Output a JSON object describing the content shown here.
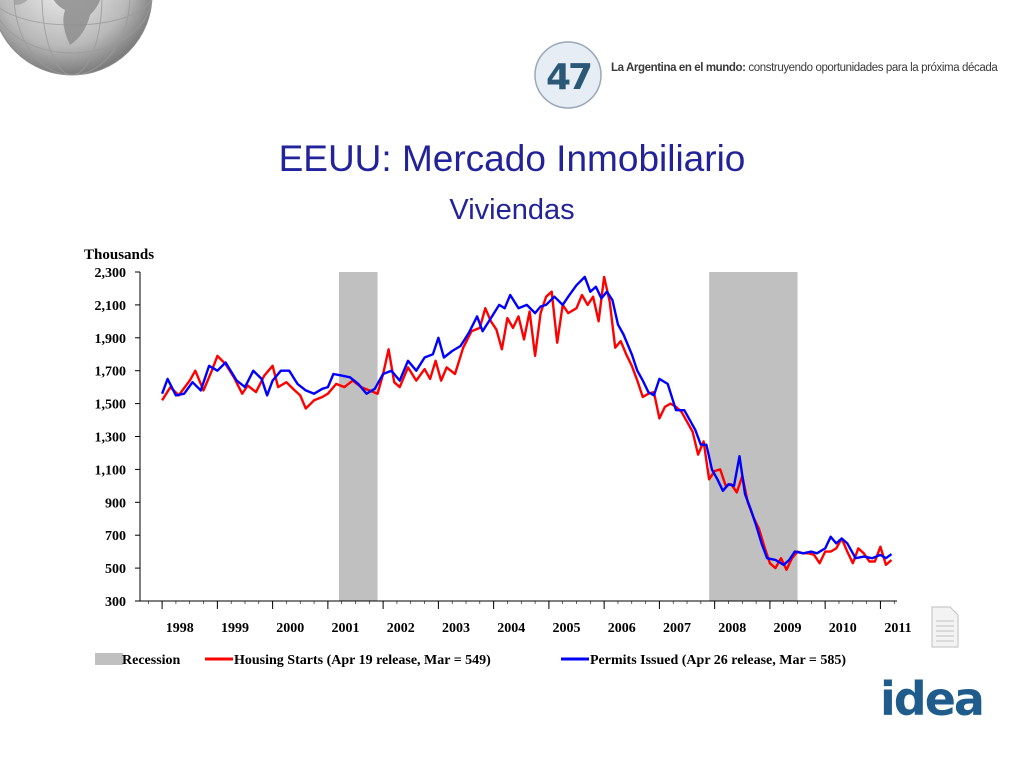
{
  "header": {
    "logo_number": "47",
    "tagline_bold": "La Argentina en el mundo:",
    "tagline_rest": " construyendo oportunidades para la próxima década"
  },
  "slide": {
    "title": "EEUU: Mercado Inmobiliario",
    "subtitle": "Viviendas"
  },
  "brand": {
    "name": "idea",
    "color": "#1f5c8c"
  },
  "chart_data": {
    "type": "line",
    "yunit_label": "Thousands",
    "ylim": [
      300,
      2300
    ],
    "yticks": [
      "2,300",
      "2,100",
      "1,900",
      "1,700",
      "1,500",
      "1,300",
      "1,100",
      "900",
      "700",
      "500",
      "300"
    ],
    "xlim": [
      1997.6,
      2011.3
    ],
    "xtick_labels": [
      "1998",
      "1999",
      "2000",
      "2001",
      "2002",
      "2003",
      "2004",
      "2005",
      "2006",
      "2007",
      "2008",
      "2009",
      "2010",
      "2011"
    ],
    "recessions": [
      [
        2001.2,
        2001.9
      ],
      [
        2007.9,
        2009.5
      ]
    ],
    "recession_color": "#c0c0c0",
    "legend": {
      "recession": "Recession",
      "starts": "Housing Starts (Apr 19 release, Mar = 549)",
      "permits": "Permits Issued (Apr 26 release, Mar = 585)"
    },
    "series": [
      {
        "name": "Housing Starts (Apr 19 release, Mar = 549)",
        "color": "#ff0000",
        "points": [
          [
            1998.0,
            1520
          ],
          [
            1998.15,
            1600
          ],
          [
            1998.3,
            1550
          ],
          [
            1998.5,
            1640
          ],
          [
            1998.6,
            1700
          ],
          [
            1998.75,
            1580
          ],
          [
            1998.9,
            1700
          ],
          [
            1999.0,
            1790
          ],
          [
            1999.15,
            1740
          ],
          [
            1999.3,
            1660
          ],
          [
            1999.45,
            1560
          ],
          [
            1999.55,
            1610
          ],
          [
            1999.7,
            1570
          ],
          [
            1999.85,
            1670
          ],
          [
            2000.0,
            1730
          ],
          [
            2000.1,
            1600
          ],
          [
            2000.25,
            1630
          ],
          [
            2000.4,
            1580
          ],
          [
            2000.5,
            1550
          ],
          [
            2000.6,
            1470
          ],
          [
            2000.75,
            1520
          ],
          [
            2000.9,
            1540
          ],
          [
            2001.0,
            1560
          ],
          [
            2001.15,
            1620
          ],
          [
            2001.3,
            1600
          ],
          [
            2001.45,
            1640
          ],
          [
            2001.6,
            1600
          ],
          [
            2001.75,
            1580
          ],
          [
            2001.9,
            1560
          ],
          [
            2002.0,
            1680
          ],
          [
            2002.1,
            1830
          ],
          [
            2002.2,
            1630
          ],
          [
            2002.3,
            1600
          ],
          [
            2002.45,
            1720
          ],
          [
            2002.6,
            1640
          ],
          [
            2002.75,
            1710
          ],
          [
            2002.85,
            1650
          ],
          [
            2002.95,
            1760
          ],
          [
            2003.05,
            1640
          ],
          [
            2003.15,
            1720
          ],
          [
            2003.3,
            1680
          ],
          [
            2003.45,
            1840
          ],
          [
            2003.6,
            1940
          ],
          [
            2003.75,
            1960
          ],
          [
            2003.85,
            2080
          ],
          [
            2003.95,
            2000
          ],
          [
            2004.05,
            1950
          ],
          [
            2004.15,
            1830
          ],
          [
            2004.25,
            2020
          ],
          [
            2004.35,
            1960
          ],
          [
            2004.45,
            2030
          ],
          [
            2004.55,
            1890
          ],
          [
            2004.65,
            2060
          ],
          [
            2004.75,
            1790
          ],
          [
            2004.85,
            2050
          ],
          [
            2004.95,
            2150
          ],
          [
            2005.05,
            2180
          ],
          [
            2005.15,
            1870
          ],
          [
            2005.25,
            2100
          ],
          [
            2005.35,
            2050
          ],
          [
            2005.5,
            2080
          ],
          [
            2005.6,
            2160
          ],
          [
            2005.7,
            2100
          ],
          [
            2005.8,
            2150
          ],
          [
            2005.9,
            2000
          ],
          [
            2006.0,
            2270
          ],
          [
            2006.1,
            2120
          ],
          [
            2006.2,
            1840
          ],
          [
            2006.3,
            1880
          ],
          [
            2006.4,
            1800
          ],
          [
            2006.5,
            1730
          ],
          [
            2006.6,
            1640
          ],
          [
            2006.7,
            1540
          ],
          [
            2006.8,
            1560
          ],
          [
            2006.9,
            1570
          ],
          [
            2007.0,
            1410
          ],
          [
            2007.1,
            1480
          ],
          [
            2007.2,
            1500
          ],
          [
            2007.3,
            1480
          ],
          [
            2007.4,
            1450
          ],
          [
            2007.5,
            1390
          ],
          [
            2007.6,
            1330
          ],
          [
            2007.7,
            1190
          ],
          [
            2007.8,
            1270
          ],
          [
            2007.9,
            1040
          ],
          [
            2008.0,
            1090
          ],
          [
            2008.1,
            1100
          ],
          [
            2008.2,
            1000
          ],
          [
            2008.3,
            1010
          ],
          [
            2008.4,
            960
          ],
          [
            2008.5,
            1060
          ],
          [
            2008.6,
            900
          ],
          [
            2008.7,
            810
          ],
          [
            2008.8,
            740
          ],
          [
            2008.9,
            630
          ],
          [
            2009.0,
            530
          ],
          [
            2009.1,
            500
          ],
          [
            2009.2,
            560
          ],
          [
            2009.3,
            490
          ],
          [
            2009.4,
            560
          ],
          [
            2009.5,
            600
          ],
          [
            2009.6,
            590
          ],
          [
            2009.7,
            590
          ],
          [
            2009.8,
            580
          ],
          [
            2009.9,
            530
          ],
          [
            2010.0,
            600
          ],
          [
            2010.1,
            600
          ],
          [
            2010.2,
            620
          ],
          [
            2010.3,
            680
          ],
          [
            2010.4,
            600
          ],
          [
            2010.5,
            530
          ],
          [
            2010.6,
            620
          ],
          [
            2010.7,
            590
          ],
          [
            2010.8,
            540
          ],
          [
            2010.9,
            540
          ],
          [
            2011.0,
            630
          ],
          [
            2011.1,
            520
          ],
          [
            2011.2,
            549
          ]
        ]
      },
      {
        "name": "Permits Issued (Apr 26 release, Mar = 585)",
        "color": "#0000ff",
        "points": [
          [
            1998.0,
            1560
          ],
          [
            1998.1,
            1650
          ],
          [
            1998.25,
            1550
          ],
          [
            1998.4,
            1560
          ],
          [
            1998.55,
            1630
          ],
          [
            1998.7,
            1580
          ],
          [
            1998.85,
            1730
          ],
          [
            1999.0,
            1700
          ],
          [
            1999.15,
            1750
          ],
          [
            1999.35,
            1640
          ],
          [
            1999.5,
            1600
          ],
          [
            1999.65,
            1700
          ],
          [
            1999.8,
            1650
          ],
          [
            1999.9,
            1550
          ],
          [
            2000.0,
            1640
          ],
          [
            2000.15,
            1700
          ],
          [
            2000.3,
            1700
          ],
          [
            2000.45,
            1620
          ],
          [
            2000.6,
            1580
          ],
          [
            2000.75,
            1560
          ],
          [
            2000.9,
            1590
          ],
          [
            2001.0,
            1600
          ],
          [
            2001.1,
            1680
          ],
          [
            2001.25,
            1670
          ],
          [
            2001.4,
            1660
          ],
          [
            2001.55,
            1620
          ],
          [
            2001.7,
            1560
          ],
          [
            2001.85,
            1590
          ],
          [
            2002.0,
            1680
          ],
          [
            2002.15,
            1700
          ],
          [
            2002.3,
            1640
          ],
          [
            2002.45,
            1760
          ],
          [
            2002.6,
            1700
          ],
          [
            2002.75,
            1780
          ],
          [
            2002.9,
            1800
          ],
          [
            2003.0,
            1900
          ],
          [
            2003.1,
            1780
          ],
          [
            2003.25,
            1820
          ],
          [
            2003.4,
            1850
          ],
          [
            2003.55,
            1930
          ],
          [
            2003.7,
            2030
          ],
          [
            2003.8,
            1940
          ],
          [
            2003.95,
            2020
          ],
          [
            2004.1,
            2100
          ],
          [
            2004.2,
            2080
          ],
          [
            2004.3,
            2160
          ],
          [
            2004.45,
            2080
          ],
          [
            2004.6,
            2100
          ],
          [
            2004.75,
            2050
          ],
          [
            2004.85,
            2090
          ],
          [
            2004.95,
            2100
          ],
          [
            2005.1,
            2150
          ],
          [
            2005.25,
            2100
          ],
          [
            2005.35,
            2150
          ],
          [
            2005.5,
            2220
          ],
          [
            2005.65,
            2270
          ],
          [
            2005.75,
            2180
          ],
          [
            2005.85,
            2210
          ],
          [
            2005.95,
            2140
          ],
          [
            2006.05,
            2180
          ],
          [
            2006.15,
            2130
          ],
          [
            2006.25,
            1980
          ],
          [
            2006.35,
            1920
          ],
          [
            2006.5,
            1800
          ],
          [
            2006.6,
            1700
          ],
          [
            2006.7,
            1640
          ],
          [
            2006.8,
            1570
          ],
          [
            2006.9,
            1550
          ],
          [
            2007.0,
            1650
          ],
          [
            2007.15,
            1620
          ],
          [
            2007.3,
            1460
          ],
          [
            2007.45,
            1460
          ],
          [
            2007.55,
            1400
          ],
          [
            2007.65,
            1340
          ],
          [
            2007.75,
            1250
          ],
          [
            2007.85,
            1250
          ],
          [
            2007.95,
            1100
          ],
          [
            2008.05,
            1040
          ],
          [
            2008.15,
            970
          ],
          [
            2008.25,
            1010
          ],
          [
            2008.35,
            1000
          ],
          [
            2008.45,
            1180
          ],
          [
            2008.55,
            950
          ],
          [
            2008.65,
            860
          ],
          [
            2008.75,
            760
          ],
          [
            2008.85,
            650
          ],
          [
            2008.95,
            560
          ],
          [
            2009.1,
            550
          ],
          [
            2009.25,
            520
          ],
          [
            2009.35,
            550
          ],
          [
            2009.45,
            600
          ],
          [
            2009.6,
            590
          ],
          [
            2009.75,
            600
          ],
          [
            2009.85,
            590
          ],
          [
            2010.0,
            620
          ],
          [
            2010.1,
            690
          ],
          [
            2010.2,
            650
          ],
          [
            2010.3,
            680
          ],
          [
            2010.4,
            650
          ],
          [
            2010.55,
            560
          ],
          [
            2010.7,
            570
          ],
          [
            2010.85,
            560
          ],
          [
            2011.0,
            580
          ],
          [
            2011.1,
            560
          ],
          [
            2011.2,
            585
          ]
        ]
      }
    ]
  }
}
